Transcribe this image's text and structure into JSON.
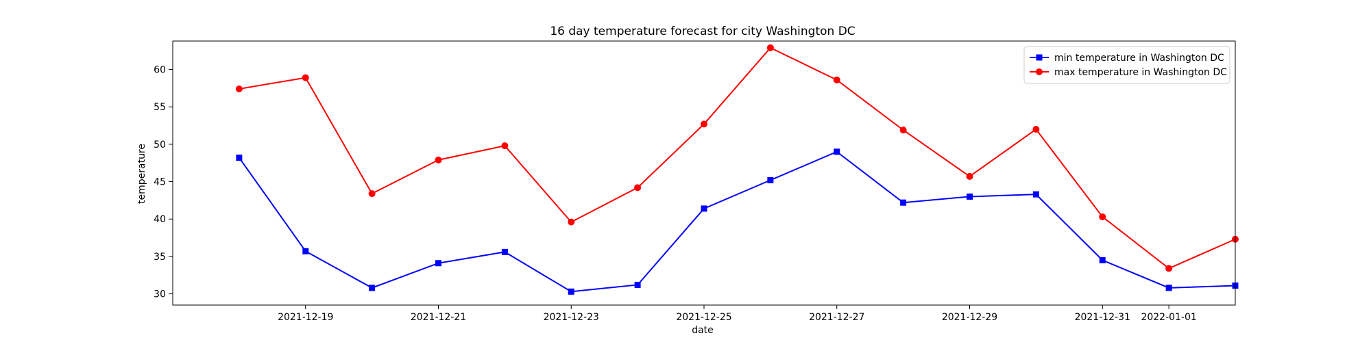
{
  "chart_data": {
    "type": "line",
    "title": "16 day temperature forecast for city Washington DC",
    "xlabel": "date",
    "ylabel": "temperature",
    "x": [
      "2021-12-18",
      "2021-12-19",
      "2021-12-20",
      "2021-12-21",
      "2021-12-22",
      "2021-12-23",
      "2021-12-24",
      "2021-12-25",
      "2021-12-26",
      "2021-12-27",
      "2021-12-28",
      "2021-12-29",
      "2021-12-30",
      "2021-12-31",
      "2022-01-01",
      "2022-01-02"
    ],
    "x_ticks": [
      "2021-12-19",
      "2021-12-21",
      "2021-12-23",
      "2021-12-25",
      "2021-12-27",
      "2021-12-29",
      "2021-12-31",
      "2022-01-01"
    ],
    "xlim": [
      "2021-12-17",
      "2022-01-02"
    ],
    "ylim": [
      28.5,
      63.8
    ],
    "y_ticks": [
      30,
      35,
      40,
      45,
      50,
      55,
      60
    ],
    "grid": false,
    "legend_position": "top-right",
    "series": [
      {
        "name": "min temperature in Washington DC",
        "color": "#0000ff",
        "marker": "square",
        "values": [
          48.2,
          35.7,
          30.8,
          34.1,
          35.6,
          30.3,
          31.2,
          41.4,
          45.2,
          49.0,
          42.2,
          43.0,
          43.3,
          34.5,
          30.8,
          31.1
        ]
      },
      {
        "name": "max temperature in Washington DC",
        "color": "#ff0000",
        "marker": "circle",
        "values": [
          57.4,
          58.9,
          43.4,
          47.9,
          49.8,
          39.6,
          44.2,
          52.7,
          62.9,
          58.6,
          51.9,
          45.7,
          52.0,
          40.3,
          33.4,
          37.3
        ]
      }
    ]
  }
}
